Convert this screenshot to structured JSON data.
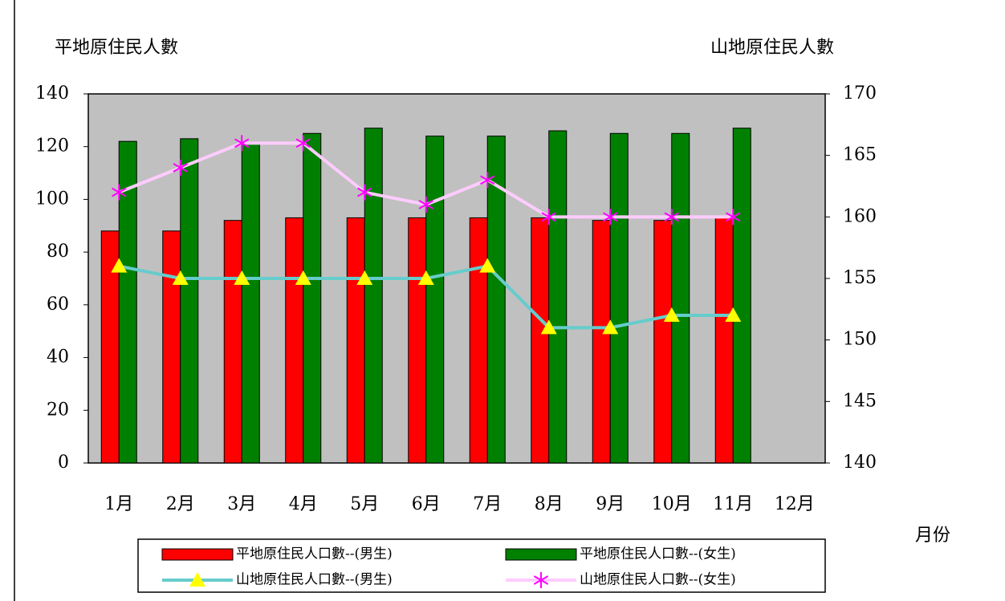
{
  "chart_data": {
    "type": "bar",
    "y_label": "平地原住民人數",
    "y2_label": "山地原住民人數",
    "x_label": "月份",
    "categories": [
      "1月",
      "2月",
      "3月",
      "4月",
      "5月",
      "6月",
      "7月",
      "8月",
      "9月",
      "10月",
      "11月",
      "12月"
    ],
    "series": [
      {
        "name": "平地原住民人口數--(男生)",
        "type": "bar",
        "color": "#ff0000",
        "values": [
          88,
          88,
          92,
          93,
          93,
          93,
          93,
          93,
          92,
          92,
          93,
          null
        ]
      },
      {
        "name": "平地原住民人口數--(女生)",
        "type": "bar",
        "color": "#008000",
        "values": [
          122,
          123,
          121,
          125,
          127,
          124,
          124,
          126,
          125,
          125,
          127,
          null
        ]
      },
      {
        "name": "山地原住民人口數--(男生)",
        "type": "line",
        "axis": "y2",
        "color": "#66cccc",
        "marker": "triangle",
        "marker_color": "#ffff00",
        "values": [
          156,
          155,
          155,
          155,
          155,
          155,
          156,
          151,
          151,
          152,
          152,
          null
        ]
      },
      {
        "name": "山地原住民人口數--(女生)",
        "type": "line",
        "axis": "y2",
        "color": "#ffccff",
        "marker": "asterisk",
        "marker_color": "#ff00ff",
        "values": [
          162,
          164,
          166,
          166,
          162,
          161,
          163,
          160,
          160,
          160,
          160,
          null
        ]
      }
    ],
    "ylim": [
      0,
      140
    ],
    "yticks": [
      0,
      20,
      40,
      60,
      80,
      100,
      120,
      140
    ],
    "y2lim": [
      140,
      170
    ],
    "y2ticks": [
      140,
      145,
      150,
      155,
      160,
      165,
      170
    ],
    "plot_background": "#c0c0c0"
  }
}
